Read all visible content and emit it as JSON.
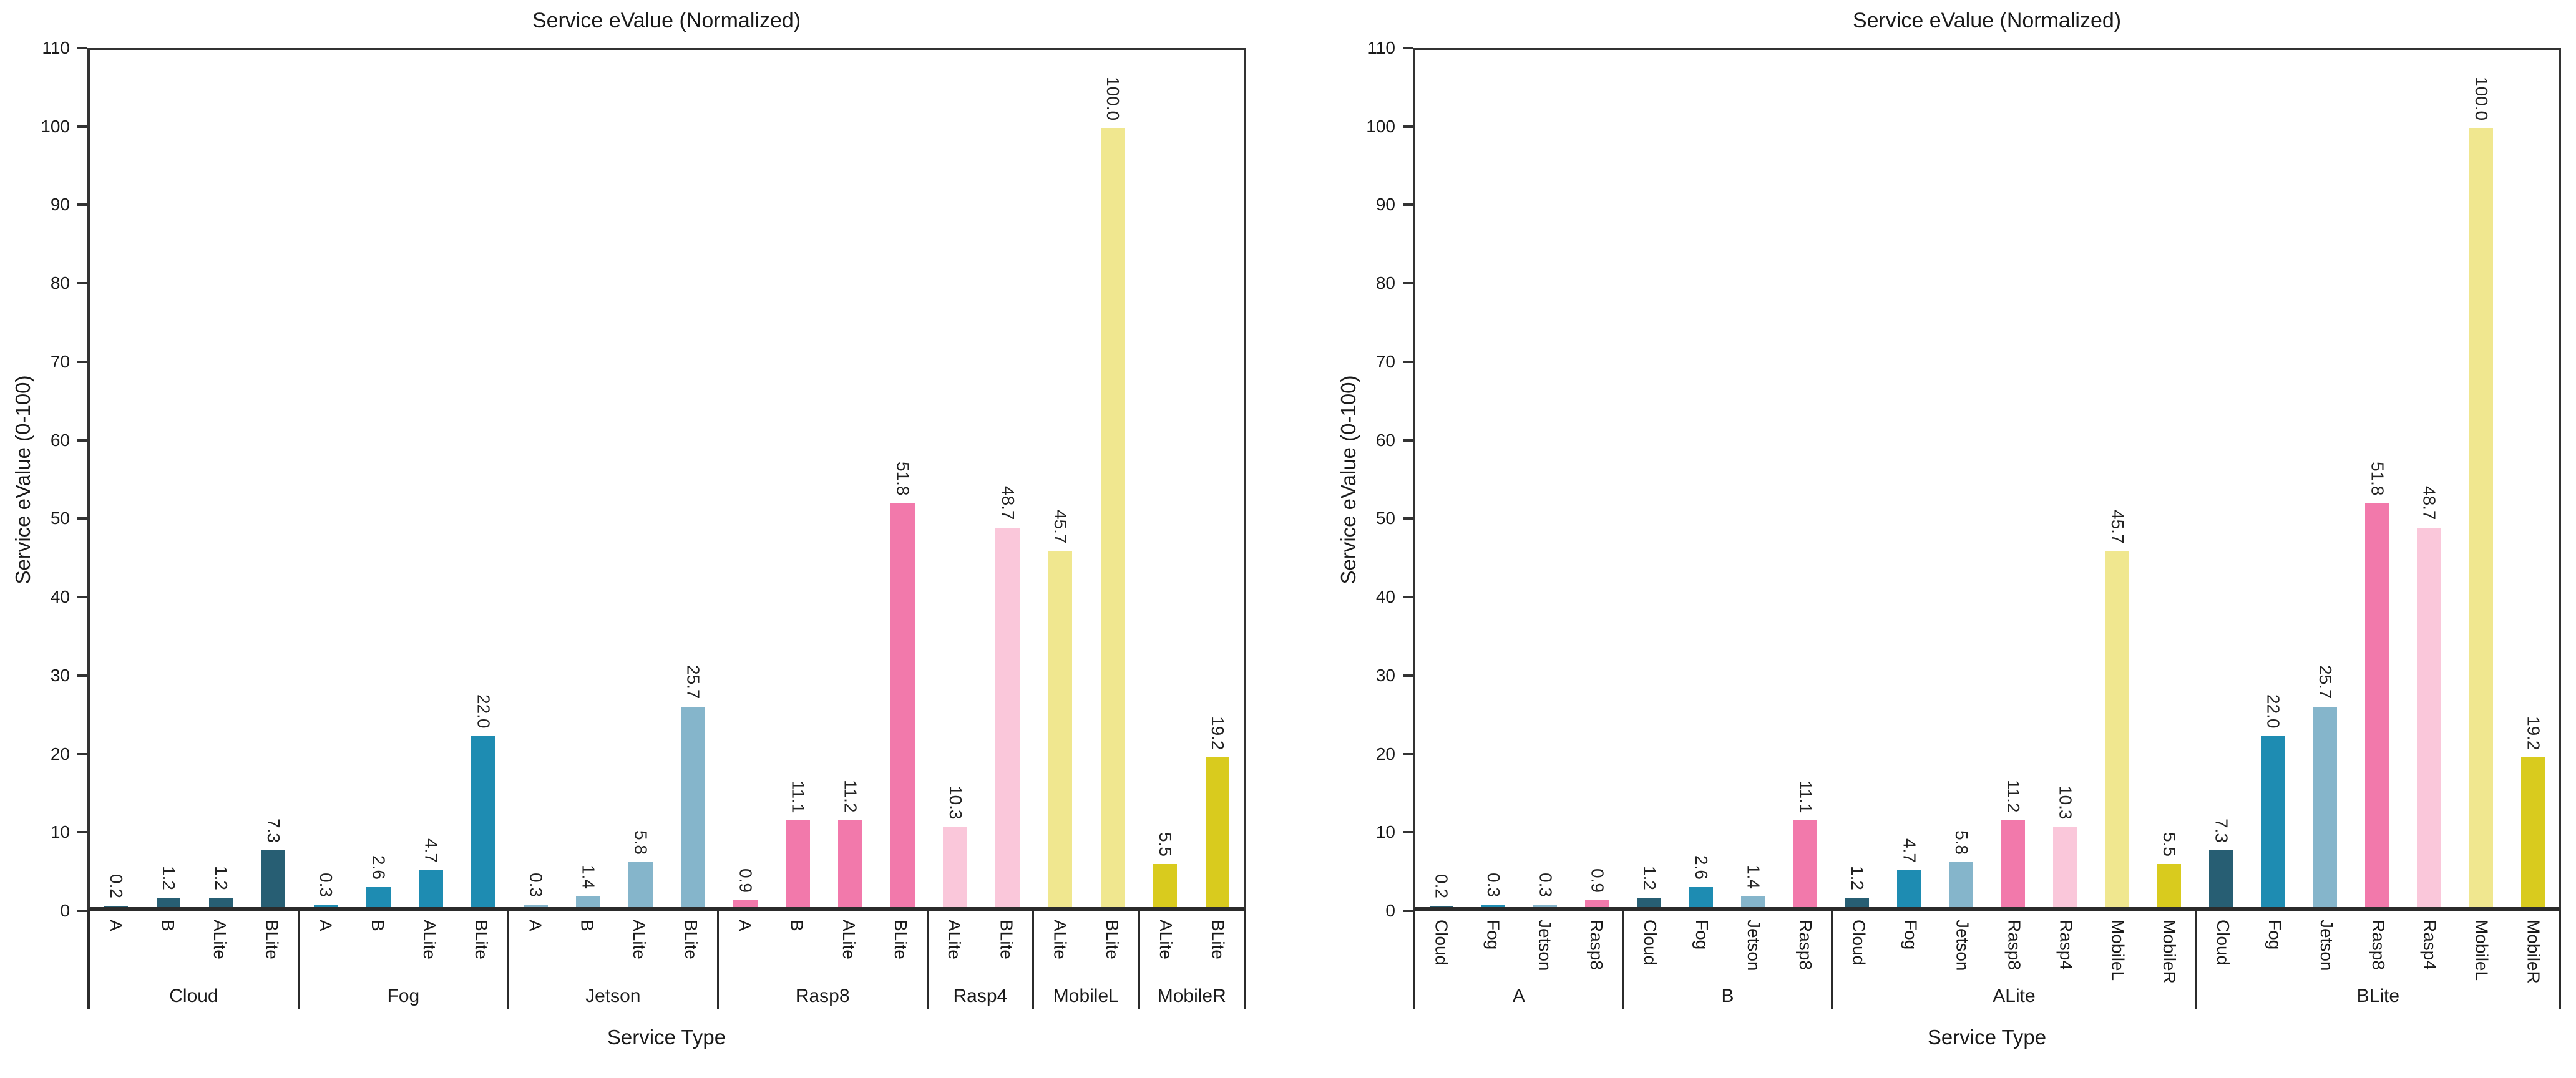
{
  "palette": {
    "cloud": "#275E73",
    "fog": "#1E8CB2",
    "jetson": "#85B5CB",
    "rasp8": "#F279AB",
    "rasp4": "#FAC7DA",
    "mobilel": "#F0E78F",
    "mobiler": "#D9CB1E"
  },
  "chart_data": [
    {
      "type": "bar",
      "title": "Service eValue (Normalized)",
      "xlabel": "Service Type",
      "ylabel": "Service eValue (0-100)",
      "ylim": [
        0,
        110
      ],
      "yticks": [
        0,
        10,
        20,
        30,
        40,
        50,
        60,
        70,
        80,
        90,
        100,
        110
      ],
      "grid": false,
      "legend": "none",
      "bar_value_labels_rotated": true,
      "groups": [
        {
          "label": "Cloud",
          "bars": [
            {
              "label": "A",
              "value": 0.2,
              "color": "cloud"
            },
            {
              "label": "B",
              "value": 1.2,
              "color": "cloud"
            },
            {
              "label": "ALite",
              "value": 1.2,
              "color": "cloud"
            },
            {
              "label": "BLite",
              "value": 7.3,
              "color": "cloud"
            }
          ]
        },
        {
          "label": "Fog",
          "bars": [
            {
              "label": "A",
              "value": 0.3,
              "color": "fog"
            },
            {
              "label": "B",
              "value": 2.6,
              "color": "fog"
            },
            {
              "label": "ALite",
              "value": 4.7,
              "color": "fog"
            },
            {
              "label": "BLite",
              "value": 22.0,
              "color": "fog"
            }
          ]
        },
        {
          "label": "Jetson",
          "bars": [
            {
              "label": "A",
              "value": 0.3,
              "color": "jetson"
            },
            {
              "label": "B",
              "value": 1.4,
              "color": "jetson"
            },
            {
              "label": "ALite",
              "value": 5.8,
              "color": "jetson"
            },
            {
              "label": "BLite",
              "value": 25.7,
              "color": "jetson"
            }
          ]
        },
        {
          "label": "Rasp8",
          "bars": [
            {
              "label": "A",
              "value": 0.9,
              "color": "rasp8"
            },
            {
              "label": "B",
              "value": 11.1,
              "color": "rasp8"
            },
            {
              "label": "ALite",
              "value": 11.2,
              "color": "rasp8"
            },
            {
              "label": "BLite",
              "value": 51.8,
              "color": "rasp8"
            }
          ]
        },
        {
          "label": "Rasp4",
          "bars": [
            {
              "label": "ALite",
              "value": 10.3,
              "color": "rasp4"
            },
            {
              "label": "BLite",
              "value": 48.7,
              "color": "rasp4"
            }
          ]
        },
        {
          "label": "MobileL",
          "bars": [
            {
              "label": "ALite",
              "value": 45.7,
              "color": "mobilel"
            },
            {
              "label": "BLite",
              "value": 100.0,
              "color": "mobilel"
            }
          ]
        },
        {
          "label": "MobileR",
          "bars": [
            {
              "label": "ALite",
              "value": 5.5,
              "color": "mobiler"
            },
            {
              "label": "BLite",
              "value": 19.2,
              "color": "mobiler"
            }
          ]
        }
      ]
    },
    {
      "type": "bar",
      "title": "Service eValue (Normalized)",
      "xlabel": "Service Type",
      "ylabel": "Service eValue (0-100)",
      "ylim": [
        0,
        110
      ],
      "yticks": [
        0,
        10,
        20,
        30,
        40,
        50,
        60,
        70,
        80,
        90,
        100,
        110
      ],
      "grid": false,
      "legend": "none",
      "bar_value_labels_rotated": true,
      "groups": [
        {
          "label": "A",
          "bars": [
            {
              "label": "Cloud",
              "value": 0.2,
              "color": "cloud"
            },
            {
              "label": "Fog",
              "value": 0.3,
              "color": "fog"
            },
            {
              "label": "Jetson",
              "value": 0.3,
              "color": "jetson"
            },
            {
              "label": "Rasp8",
              "value": 0.9,
              "color": "rasp8"
            }
          ]
        },
        {
          "label": "B",
          "bars": [
            {
              "label": "Cloud",
              "value": 1.2,
              "color": "cloud"
            },
            {
              "label": "Fog",
              "value": 2.6,
              "color": "fog"
            },
            {
              "label": "Jetson",
              "value": 1.4,
              "color": "jetson"
            },
            {
              "label": "Rasp8",
              "value": 11.1,
              "color": "rasp8"
            }
          ]
        },
        {
          "label": "ALite",
          "bars": [
            {
              "label": "Cloud",
              "value": 1.2,
              "color": "cloud"
            },
            {
              "label": "Fog",
              "value": 4.7,
              "color": "fog"
            },
            {
              "label": "Jetson",
              "value": 5.8,
              "color": "jetson"
            },
            {
              "label": "Rasp8",
              "value": 11.2,
              "color": "rasp8"
            },
            {
              "label": "Rasp4",
              "value": 10.3,
              "color": "rasp4"
            },
            {
              "label": "MobileL",
              "value": 45.7,
              "color": "mobilel"
            },
            {
              "label": "MobileR",
              "value": 5.5,
              "color": "mobiler"
            }
          ]
        },
        {
          "label": "BLite",
          "bars": [
            {
              "label": "Cloud",
              "value": 7.3,
              "color": "cloud"
            },
            {
              "label": "Fog",
              "value": 22.0,
              "color": "fog"
            },
            {
              "label": "Jetson",
              "value": 25.7,
              "color": "jetson"
            },
            {
              "label": "Rasp8",
              "value": 51.8,
              "color": "rasp8"
            },
            {
              "label": "Rasp4",
              "value": 48.7,
              "color": "rasp4"
            },
            {
              "label": "MobileL",
              "value": 100.0,
              "color": "mobilel"
            },
            {
              "label": "MobileR",
              "value": 19.2,
              "color": "mobiler"
            }
          ]
        }
      ]
    }
  ]
}
